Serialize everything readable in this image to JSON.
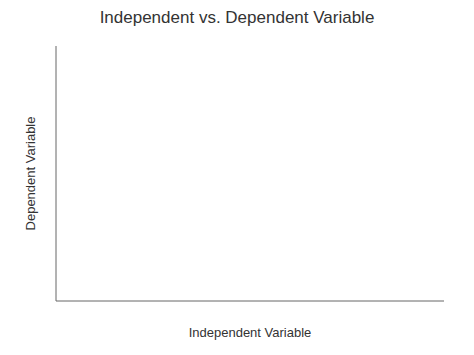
{
  "chart_data": {
    "type": "line",
    "title": "Independent vs. Dependent Variable",
    "xlabel": "Independent Variable",
    "ylabel": "Dependent Variable",
    "xlim": [
      0,
      1
    ],
    "ylim": [
      0,
      1
    ],
    "xticks": [],
    "yticks": [],
    "tick_labels": false,
    "series": []
  }
}
